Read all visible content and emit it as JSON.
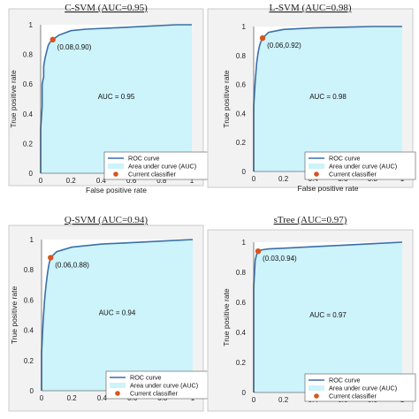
{
  "chart_data": [
    {
      "type": "area",
      "title": "C-SVM (AUC=0.95)",
      "xlabel": "False positive rate",
      "ylabel": "True positive rate",
      "xlim": [
        0,
        1
      ],
      "ylim": [
        0,
        1
      ],
      "xticks": [
        "0",
        "0.2",
        "0.4",
        "0.6",
        "0.8",
        "1"
      ],
      "yticks": [
        "0",
        "0.2",
        "0.4",
        "0.6",
        "0.8",
        "1"
      ],
      "auc_label": "AUC = 0.95",
      "point": {
        "x": 0.08,
        "y": 0.9,
        "label": "(0.08,0.90)"
      },
      "curve": {
        "x": [
          0,
          0,
          0.01,
          0.01,
          0.02,
          0.02,
          0.03,
          0.04,
          0.05,
          0.06,
          0.08,
          0.12,
          0.2,
          0.3,
          0.5,
          0.7,
          0.9,
          1
        ],
        "y": [
          0,
          0.3,
          0.45,
          0.6,
          0.65,
          0.72,
          0.78,
          0.82,
          0.86,
          0.88,
          0.9,
          0.93,
          0.96,
          0.97,
          0.98,
          0.99,
          1,
          1
        ]
      },
      "legend": [
        "ROC curve",
        "Area under curve (AUC)",
        "Current classifier"
      ]
    },
    {
      "type": "area",
      "title": "L-SVM (AUC=0.98)",
      "xlabel": "False positive rate",
      "ylabel": "True positive rate",
      "xlim": [
        0,
        1
      ],
      "ylim": [
        0,
        1
      ],
      "xticks": [
        "0",
        "0.2",
        "0.4",
        "0.6",
        "0.8",
        "1"
      ],
      "yticks": [
        "0",
        "0.2",
        "0.4",
        "0.6",
        "0.8",
        "1"
      ],
      "auc_label": "AUC = 0.98",
      "point": {
        "x": 0.06,
        "y": 0.92,
        "label": "(0.06,0.92)"
      },
      "curve": {
        "x": [
          0,
          0,
          0.01,
          0.02,
          0.03,
          0.04,
          0.05,
          0.06,
          0.1,
          0.2,
          0.4,
          0.6,
          0.8,
          1
        ],
        "y": [
          0,
          0.45,
          0.62,
          0.75,
          0.82,
          0.87,
          0.9,
          0.92,
          0.96,
          0.98,
          0.99,
          0.995,
          1,
          1
        ]
      },
      "legend": [
        "ROC curve",
        "Area under curve (AUC)",
        "Current classifier"
      ]
    },
    {
      "type": "area",
      "title": "Q-SVM (AUC=0.94)",
      "xlabel": "",
      "ylabel": "True positive rate",
      "xlim": [
        0,
        1
      ],
      "ylim": [
        0,
        1
      ],
      "xticks": [
        "0",
        "0.2",
        "0.4",
        "0.6",
        "0.8",
        "1"
      ],
      "yticks": [
        "0",
        "0.2",
        "0.4",
        "0.6",
        "0.8",
        "1"
      ],
      "auc_label": "AUC = 0.94",
      "point": {
        "x": 0.06,
        "y": 0.88,
        "label": "(0.06,0.88)"
      },
      "curve": {
        "x": [
          0,
          0,
          0.01,
          0.02,
          0.03,
          0.04,
          0.05,
          0.06,
          0.1,
          0.2,
          0.4,
          0.6,
          0.8,
          1
        ],
        "y": [
          0,
          0.25,
          0.45,
          0.6,
          0.7,
          0.78,
          0.84,
          0.88,
          0.92,
          0.95,
          0.97,
          0.98,
          0.99,
          1
        ]
      },
      "legend": [
        "ROC curve",
        "Area under curve (AUC)",
        "Current classifier"
      ]
    },
    {
      "type": "area",
      "title": "sTree (AUC=0.97)",
      "xlabel": "",
      "ylabel": "True positive rate",
      "xlim": [
        0,
        1
      ],
      "ylim": [
        0,
        1
      ],
      "xticks": [
        "0",
        "0.2",
        "0.4",
        "0.6",
        "0.8",
        "1"
      ],
      "yticks": [
        "0",
        "0.2",
        "0.4",
        "0.6",
        "0.8",
        "1"
      ],
      "auc_label": "AUC = 0.97",
      "point": {
        "x": 0.03,
        "y": 0.94,
        "label": "(0.03,0.94)"
      },
      "curve": {
        "x": [
          0,
          0,
          0.01,
          0.02,
          0.03,
          0.06,
          0.1,
          0.2,
          0.4,
          0.6,
          0.8,
          1
        ],
        "y": [
          0,
          0.7,
          0.88,
          0.92,
          0.94,
          0.95,
          0.955,
          0.96,
          0.97,
          0.98,
          0.99,
          1
        ]
      },
      "legend": [
        "ROC curve",
        "Area under curve (AUC)",
        "Current classifier"
      ]
    }
  ],
  "colors": {
    "curve": "#3a6fa8",
    "fill": "#cdf3fb",
    "point": "#d9541e",
    "axis": "#333333"
  }
}
